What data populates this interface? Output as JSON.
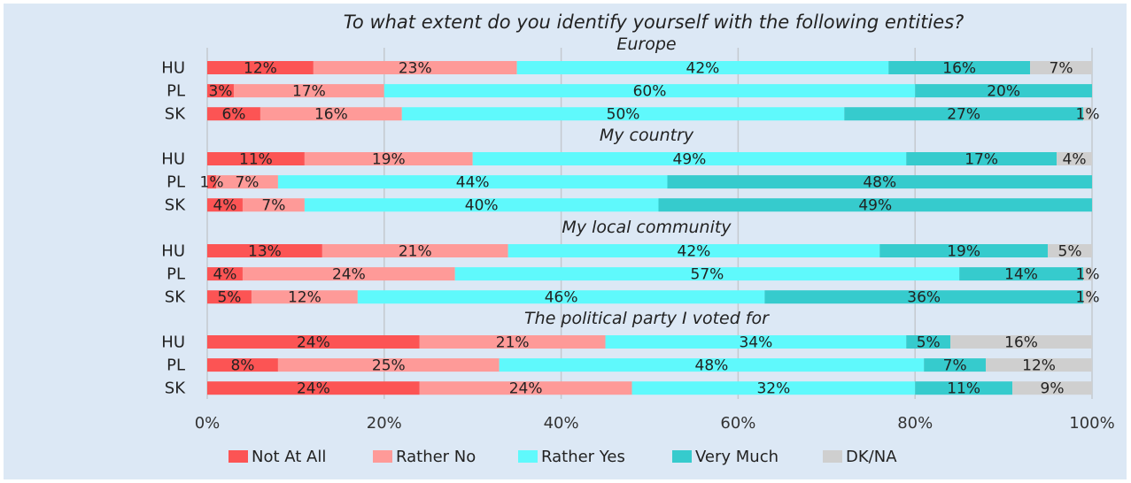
{
  "chart_data": {
    "type": "bar",
    "orientation": "horizontal",
    "stacked": true,
    "percent_stacked": true,
    "title": "To what extent do you identify yourself with the following entities?",
    "x_ticks": [
      "0%",
      "20%",
      "40%",
      "60%",
      "80%",
      "100%"
    ],
    "xlim": [
      0,
      100
    ],
    "grid": true,
    "legend_position": "bottom",
    "series": [
      {
        "name": "Not At All",
        "color": "#fc5454"
      },
      {
        "name": "Rather No",
        "color": "#fe9a98"
      },
      {
        "name": "Rather Yes",
        "color": "#5ff9fc"
      },
      {
        "name": "Very Much",
        "color": "#36cbcd"
      },
      {
        "name": "DK/NA",
        "color": "#cfcfcf"
      }
    ],
    "groups": [
      {
        "title": "Europe",
        "rows": [
          {
            "label": "HU",
            "values": [
              12,
              23,
              42,
              16,
              7
            ],
            "labels": [
              "12%",
              "23%",
              "42%",
              "16%",
              "7%"
            ]
          },
          {
            "label": "PL",
            "values": [
              3,
              17,
              60,
              20,
              0
            ],
            "labels": [
              "3%",
              "17%",
              "60%",
              "20%",
              ""
            ]
          },
          {
            "label": "SK",
            "values": [
              6,
              16,
              50,
              27,
              1
            ],
            "labels": [
              "6%",
              "16%",
              "50%",
              "27%",
              "1%"
            ]
          }
        ]
      },
      {
        "title": "My country",
        "rows": [
          {
            "label": "HU",
            "values": [
              11,
              19,
              49,
              17,
              4
            ],
            "labels": [
              "11%",
              "19%",
              "49%",
              "17%",
              "4%"
            ]
          },
          {
            "label": "PL",
            "values": [
              1,
              7,
              44,
              48,
              0
            ],
            "labels": [
              "1%",
              "7%",
              "44%",
              "48%",
              ""
            ]
          },
          {
            "label": "SK",
            "values": [
              4,
              7,
              40,
              49,
              0
            ],
            "labels": [
              "4%",
              "7%",
              "40%",
              "49%",
              ""
            ]
          }
        ]
      },
      {
        "title": "My local community",
        "rows": [
          {
            "label": "HU",
            "values": [
              13,
              21,
              42,
              19,
              5
            ],
            "labels": [
              "13%",
              "21%",
              "42%",
              "19%",
              "5%"
            ]
          },
          {
            "label": "PL",
            "values": [
              4,
              24,
              57,
              14,
              1
            ],
            "labels": [
              "4%",
              "24%",
              "57%",
              "14%",
              "1%"
            ]
          },
          {
            "label": "SK",
            "values": [
              5,
              12,
              46,
              36,
              1
            ],
            "labels": [
              "5%",
              "12%",
              "46%",
              "36%",
              "1%"
            ]
          }
        ]
      },
      {
        "title": "The political party I voted for",
        "rows": [
          {
            "label": "HU",
            "values": [
              24,
              21,
              34,
              5,
              16
            ],
            "labels": [
              "24%",
              "21%",
              "34%",
              "5%",
              "16%"
            ]
          },
          {
            "label": "PL",
            "values": [
              8,
              25,
              48,
              7,
              12
            ],
            "labels": [
              "8%",
              "25%",
              "48%",
              "7%",
              "12%"
            ]
          },
          {
            "label": "SK",
            "values": [
              24,
              24,
              32,
              11,
              9
            ],
            "labels": [
              "24%",
              "24%",
              "32%",
              "11%",
              "9%"
            ]
          }
        ]
      }
    ]
  }
}
